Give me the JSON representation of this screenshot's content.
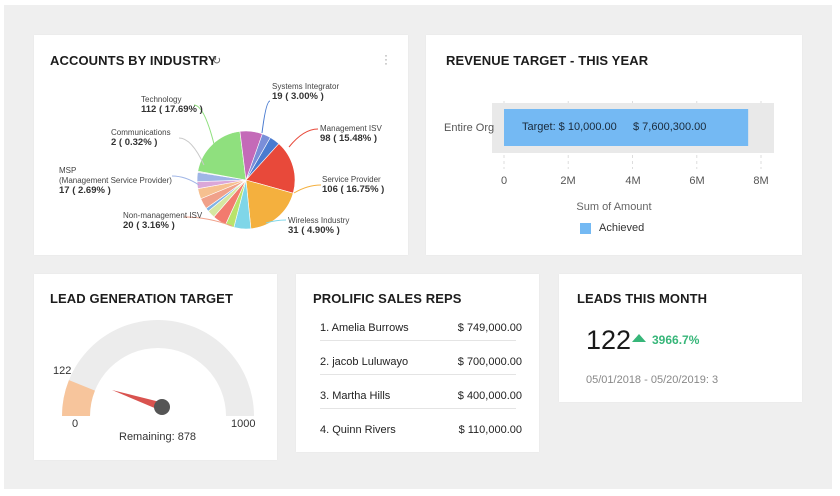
{
  "colors": {
    "background": "#efefef",
    "card": "#ffffff",
    "revenue_bar": "#74b9f3",
    "revenue_track": "#e9e9e9",
    "gauge_fill": "#f7c59c",
    "gauge_track": "#ececec",
    "gauge_needle": "#d9534f",
    "trend_up": "#37b679"
  },
  "accounts_by_industry": {
    "title": "ACCOUNTS BY INDUSTRY",
    "refresh_icon": "refresh-icon",
    "menu_icon": "kebab-menu-icon",
    "chart_data": {
      "type": "pie",
      "title": "",
      "slices": [
        {
          "name": "Systems Integrator",
          "value_label": "19 ( 3.00% )",
          "percent": 3.0,
          "color": "#4a7bd0",
          "label_pos": "top-right"
        },
        {
          "name": "Management ISV",
          "value_label": "98 ( 15.48% )",
          "percent": 15.48,
          "color": "#e8493a",
          "label_pos": "right"
        },
        {
          "name": "Service Provider",
          "value_label": "106 ( 16.75% )",
          "percent": 16.75,
          "color": "#f4b03e",
          "label_pos": "right"
        },
        {
          "name": "Wireless Industry",
          "value_label": "31 ( 4.90% )",
          "percent": 4.9,
          "color": "#7fd6e8",
          "label_pos": "bottom-right"
        },
        {
          "name": "",
          "value_label": "",
          "percent": 2.5,
          "color": "#b9e36b",
          "label_pos": "none"
        },
        {
          "name": "",
          "value_label": "",
          "percent": 4.0,
          "color": "#f27b6e",
          "label_pos": "none"
        },
        {
          "name": "",
          "value_label": "",
          "percent": 2.3,
          "color": "#d6e7a0",
          "label_pos": "none"
        },
        {
          "name": "",
          "value_label": "",
          "percent": 1.0,
          "color": "#7fb2e6",
          "label_pos": "none"
        },
        {
          "name": "Non-management ISV",
          "value_label": "20 ( 3.16% )",
          "percent": 3.16,
          "color": "#f0a18a",
          "label_pos": "bottom-left"
        },
        {
          "name": "",
          "value_label": "",
          "percent": 3.0,
          "color": "#f6c090",
          "label_pos": "none"
        },
        {
          "name": "",
          "value_label": "",
          "percent": 2.0,
          "color": "#dba7d9",
          "label_pos": "none"
        },
        {
          "name": "MSP\n(Management Service Provider)",
          "value_label": "17 ( 2.69% )",
          "percent": 2.69,
          "color": "#9fb5e6",
          "label_pos": "left"
        },
        {
          "name": "Communications",
          "value_label": "2 ( 0.32% )",
          "percent": 0.32,
          "color": "#c9c9c9",
          "label_pos": "left"
        },
        {
          "name": "Technology",
          "value_label": "112 ( 17.69% )",
          "percent": 17.69,
          "color": "#8fe07e",
          "label_pos": "top-left"
        },
        {
          "name": "",
          "value_label": "",
          "percent": 6.5,
          "color": "#c46ab8",
          "label_pos": "none"
        },
        {
          "name": "",
          "value_label": "",
          "percent": 2.5,
          "color": "#7a8ed9",
          "label_pos": "none"
        }
      ]
    }
  },
  "revenue_target": {
    "title": "REVENUE TARGET - THIS YEAR",
    "chart_data": {
      "type": "bar",
      "orientation": "horizontal",
      "categories": [
        "Entire Org"
      ],
      "series": [
        {
          "name": "Achieved",
          "values": [
            7600300
          ]
        }
      ],
      "target": 10000,
      "xlim": [
        0,
        8000000
      ],
      "xticks": [
        "0",
        "2M",
        "4M",
        "6M",
        "8M"
      ],
      "xlabel": "Sum of Amount",
      "ylabel": "",
      "target_label": "Target: $ 10,000.00",
      "value_label": "$ 7,600,300.00",
      "legend_position": "bottom"
    }
  },
  "lead_generation": {
    "title": "LEAD GENERATION TARGET",
    "min_label": "0",
    "max_label": "1000",
    "value_label": "122",
    "value": 122,
    "min": 0,
    "max": 1000,
    "remaining_label": "Remaining: 878"
  },
  "prolific_sales_reps": {
    "title": "PROLIFIC SALES REPS",
    "rows": [
      {
        "name": "1. Amelia Burrows",
        "amount": "$ 749,000.00"
      },
      {
        "name": "2. jacob Luluwayo",
        "amount": "$ 700,000.00"
      },
      {
        "name": "3. Martha Hills",
        "amount": "$ 400,000.00"
      },
      {
        "name": "4. Quinn Rivers",
        "amount": "$ 110,000.00"
      }
    ]
  },
  "leads_this_month": {
    "title": "LEADS THIS MONTH",
    "value": "122",
    "trend_icon": "trend-up-icon",
    "change": "3966.7%",
    "comparison": "05/01/2018 - 05/20/2019: 3"
  }
}
